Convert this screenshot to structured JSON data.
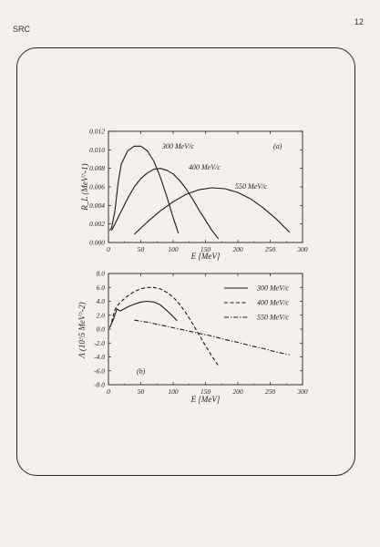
{
  "page": {
    "header_left": "SRC",
    "page_number": "12"
  },
  "chart_data": [
    {
      "type": "line",
      "panel_label": "(a)",
      "xlabel": "E [MeV]",
      "ylabel": "R_L (MeV^-1)",
      "xlim": [
        0,
        300
      ],
      "ylim": [
        0,
        0.012
      ],
      "xticks": [
        "0",
        "50",
        "100",
        "150",
        "200",
        "250",
        "300"
      ],
      "yticks": [
        "0.000",
        "0.002",
        "0.004",
        "0.006",
        "0.008",
        "0.010",
        "0.012"
      ],
      "series": [
        {
          "name": "300 MeV/c",
          "style": "solid",
          "points": [
            [
              2,
              0.0013
            ],
            [
              5,
              0.0016
            ],
            [
              10,
              0.0034
            ],
            [
              15,
              0.0065
            ],
            [
              20,
              0.0085
            ],
            [
              30,
              0.0099
            ],
            [
              40,
              0.0104
            ],
            [
              50,
              0.0104
            ],
            [
              60,
              0.0099
            ],
            [
              70,
              0.0088
            ],
            [
              80,
              0.0071
            ],
            [
              90,
              0.005
            ],
            [
              100,
              0.0027
            ],
            [
              108,
              0.001
            ]
          ]
        },
        {
          "name": "400 MeV/c",
          "style": "solid",
          "points": [
            [
              5,
              0.0013
            ],
            [
              10,
              0.002
            ],
            [
              20,
              0.0034
            ],
            [
              30,
              0.0048
            ],
            [
              40,
              0.006
            ],
            [
              50,
              0.0069
            ],
            [
              60,
              0.0075
            ],
            [
              70,
              0.0079
            ],
            [
              80,
              0.008
            ],
            [
              90,
              0.0078
            ],
            [
              100,
              0.0074
            ],
            [
              110,
              0.0067
            ],
            [
              120,
              0.0058
            ],
            [
              130,
              0.0047
            ],
            [
              140,
              0.0035
            ],
            [
              150,
              0.0024
            ],
            [
              160,
              0.0013
            ],
            [
              170,
              0.0004
            ]
          ]
        },
        {
          "name": "550 MeV/c",
          "style": "solid",
          "points": [
            [
              40,
              0.0009
            ],
            [
              60,
              0.0022
            ],
            [
              80,
              0.0034
            ],
            [
              100,
              0.0044
            ],
            [
              120,
              0.0052
            ],
            [
              140,
              0.0057
            ],
            [
              160,
              0.0059
            ],
            [
              180,
              0.0058
            ],
            [
              200,
              0.0054
            ],
            [
              220,
              0.0047
            ],
            [
              240,
              0.0037
            ],
            [
              260,
              0.0025
            ],
            [
              280,
              0.0011
            ]
          ]
        }
      ]
    },
    {
      "type": "line",
      "panel_label": "(b)",
      "xlabel": "E [MeV]",
      "ylabel": "Λ (10^5 MeV^-2)",
      "xlim": [
        0,
        300
      ],
      "ylim": [
        -8,
        8
      ],
      "xticks": [
        "0",
        "50",
        "100",
        "150",
        "200",
        "250",
        "300"
      ],
      "yticks": [
        "-8.0",
        "-6.0",
        "-4.0",
        "-2.0",
        "0.0",
        "2.0",
        "4.0",
        "6.0",
        "8.0"
      ],
      "legend_position": "top-right",
      "series": [
        {
          "name": "300 MeV/c",
          "style": "solid",
          "points": [
            [
              2,
              0.2
            ],
            [
              8,
              1.5
            ],
            [
              13,
              2.9
            ],
            [
              18,
              2.6
            ],
            [
              22,
              2.8
            ],
            [
              30,
              3.2
            ],
            [
              40,
              3.6
            ],
            [
              50,
              3.9
            ],
            [
              60,
              4.0
            ],
            [
              70,
              3.9
            ],
            [
              80,
              3.5
            ],
            [
              90,
              2.7
            ],
            [
              100,
              1.8
            ],
            [
              106,
              1.2
            ]
          ]
        },
        {
          "name": "400 MeV/c",
          "style": "dashed",
          "points": [
            [
              5,
              1.0
            ],
            [
              10,
              2.8
            ],
            [
              15,
              3.5
            ],
            [
              20,
              4.0
            ],
            [
              30,
              4.8
            ],
            [
              40,
              5.4
            ],
            [
              50,
              5.8
            ],
            [
              60,
              6.0
            ],
            [
              70,
              6.0
            ],
            [
              80,
              5.8
            ],
            [
              90,
              5.3
            ],
            [
              100,
              4.6
            ],
            [
              110,
              3.6
            ],
            [
              120,
              2.3
            ],
            [
              130,
              0.8
            ],
            [
              140,
              -0.8
            ],
            [
              150,
              -2.4
            ],
            [
              160,
              -3.9
            ],
            [
              170,
              -5.3
            ]
          ]
        },
        {
          "name": "550 MeV/c",
          "style": "dashdot",
          "points": [
            [
              40,
              1.3
            ],
            [
              60,
              1.0
            ],
            [
              80,
              0.6
            ],
            [
              100,
              0.2
            ],
            [
              120,
              -0.2
            ],
            [
              140,
              -0.6
            ],
            [
              160,
              -1.0
            ],
            [
              180,
              -1.5
            ],
            [
              200,
              -1.9
            ],
            [
              220,
              -2.4
            ],
            [
              240,
              -2.8
            ],
            [
              260,
              -3.3
            ],
            [
              280,
              -3.7
            ]
          ]
        }
      ]
    }
  ]
}
